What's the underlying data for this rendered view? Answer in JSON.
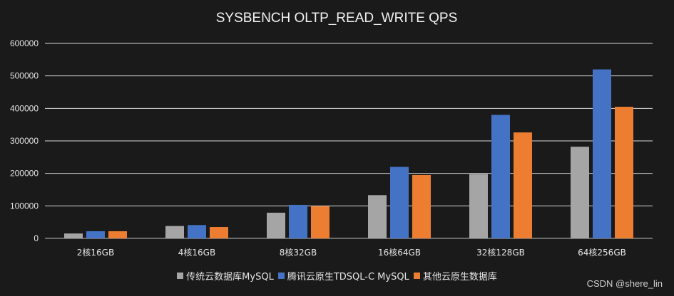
{
  "chart_data": {
    "type": "bar",
    "title": "SYSBENCH OLTP_READ_WRITE QPS",
    "categories": [
      "2核16GB",
      "4核16GB",
      "8核32GB",
      "16核64GB",
      "32核128GB",
      "64核256GB"
    ],
    "series": [
      {
        "name": "传统云数据库MySQL",
        "color": "#a5a5a5",
        "values": [
          15000,
          38000,
          79000,
          133000,
          198000,
          282000
        ]
      },
      {
        "name": "腾讯云原生TDSQL-C MySQL",
        "color": "#4472c4",
        "values": [
          22000,
          41000,
          103000,
          220000,
          380000,
          520000
        ]
      },
      {
        "name": "其他云原生数据库",
        "color": "#ed7d31",
        "values": [
          22000,
          35000,
          99000,
          195000,
          326000,
          405000
        ]
      }
    ],
    "yticks": [
      "0",
      "100000",
      "200000",
      "300000",
      "400000",
      "500000",
      "600000"
    ],
    "ylim": [
      0,
      600000
    ],
    "grid": true,
    "legend_position": "bottom"
  },
  "watermark": "CSDN @shere_lin"
}
